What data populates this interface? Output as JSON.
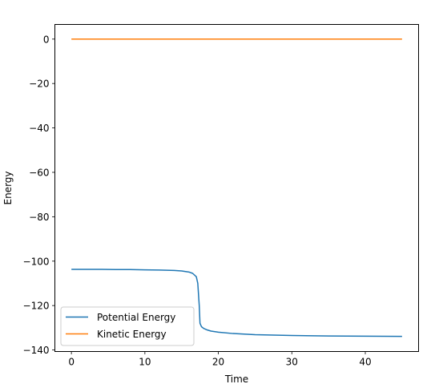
{
  "chart_data": {
    "type": "line",
    "title": "",
    "xlabel": "Time",
    "ylabel": "Energy",
    "xlim": [
      -2.25,
      47.25
    ],
    "ylim": [
      -140.7,
      6.6
    ],
    "xticks": [
      0,
      10,
      20,
      30,
      40
    ],
    "yticks": [
      0,
      -20,
      -40,
      -60,
      -80,
      -100,
      -120,
      -140
    ],
    "grid": false,
    "legend_position": "lower-left",
    "series": [
      {
        "name": "Potential Energy",
        "color": "#1f77b4",
        "x": [
          0,
          2,
          4,
          6,
          8,
          10,
          12,
          14,
          15,
          16,
          16.5,
          17,
          17.2,
          17.4,
          17.5,
          17.7,
          18,
          18.5,
          19,
          20,
          22,
          25,
          30,
          35,
          40,
          45
        ],
        "y": [
          -103.7,
          -103.7,
          -103.7,
          -103.8,
          -103.8,
          -103.9,
          -104.0,
          -104.2,
          -104.4,
          -104.9,
          -105.5,
          -107.0,
          -110.0,
          -120.0,
          -128.0,
          -129.5,
          -130.3,
          -131.0,
          -131.5,
          -132.0,
          -132.6,
          -133.1,
          -133.5,
          -133.7,
          -133.8,
          -133.9
        ]
      },
      {
        "name": "Kinetic Energy",
        "color": "#ff7f0e",
        "x": [
          0,
          45
        ],
        "y": [
          0,
          0
        ]
      }
    ]
  }
}
